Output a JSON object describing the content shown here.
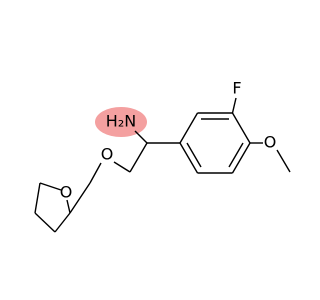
{
  "labels": {
    "amine": "H₂N",
    "fluorine": "F",
    "methoxy_oxygen": "O",
    "ether_oxygen": "O",
    "ring_oxygen": "O"
  }
}
